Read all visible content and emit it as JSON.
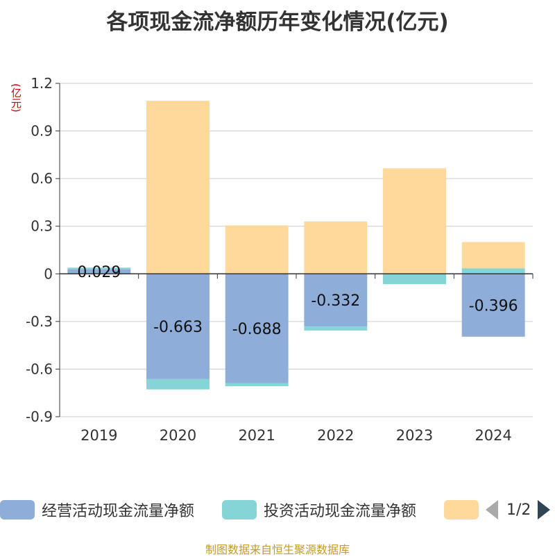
{
  "title": "各项现金流净额历年变化情况(亿元)",
  "unit_label": "(亿元)",
  "footer": "制图数据来自恒生聚源数据库",
  "legend": {
    "items": [
      {
        "label": "经营活动现金流量净额",
        "color": "#8eadd9"
      },
      {
        "label": "投资活动现金流量净额",
        "color": "#85d4d6"
      },
      {
        "label": "",
        "color": "#fed99b"
      }
    ],
    "page_indicator": "1/2"
  },
  "chart_data": {
    "type": "bar",
    "stacked": true,
    "categories": [
      "2019",
      "2020",
      "2021",
      "2022",
      "2023",
      "2024"
    ],
    "ylim": [
      -0.9,
      1.2
    ],
    "yticks": [
      "1.2",
      "0.9",
      "0.6",
      "0.3",
      "0",
      "-0.3",
      "-0.6",
      "-0.9"
    ],
    "grid": true,
    "legend_position": "bottom",
    "series": [
      {
        "name": "经营活动现金流量净额",
        "color": "#8eadd9",
        "values": [
          0.029,
          -0.663,
          -0.688,
          -0.332,
          0.0,
          -0.396
        ],
        "labels": [
          "0.029",
          "-0.663",
          "-0.688",
          "-0.332",
          "",
          "-0.396"
        ]
      },
      {
        "name": "投资活动现金流量净额",
        "color": "#85d4d6",
        "values": [
          0.01,
          -0.065,
          -0.02,
          -0.025,
          -0.065,
          0.035
        ]
      },
      {
        "name": "",
        "color": "#fed99b",
        "values": [
          0.0,
          1.09,
          0.305,
          0.33,
          0.665,
          0.165
        ]
      }
    ]
  }
}
